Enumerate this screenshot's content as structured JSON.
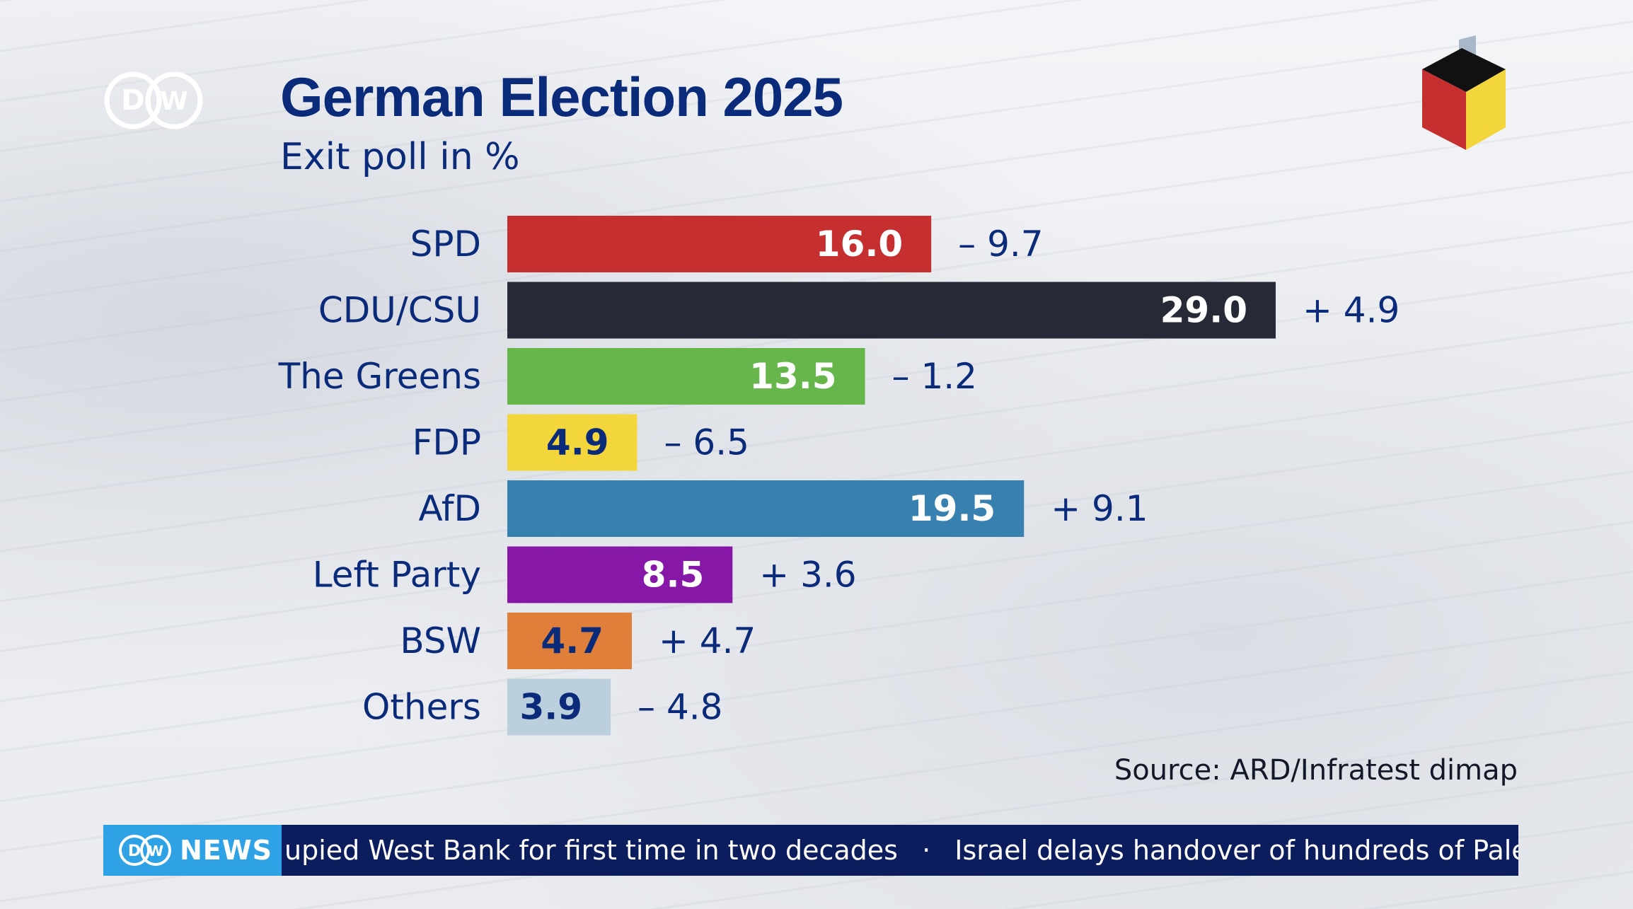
{
  "header": {
    "logo_text": "DW",
    "title": "German Election 2025",
    "subtitle": "Exit poll in %"
  },
  "colors": {
    "title": "#0a2a7a",
    "ticker_bg": "#0b1d5c",
    "ticker_brand_bg": "#2fa2e6"
  },
  "icons": {
    "logo": "dw-logo-icon",
    "ballot_box": "ballot-box-cube-icon"
  },
  "chart_data": {
    "type": "bar",
    "orientation": "horizontal",
    "title": "German Election 2025",
    "subtitle": "Exit poll in %",
    "categories": [
      "SPD",
      "CDU/CSU",
      "The Greens",
      "FDP",
      "AfD",
      "Left Party",
      "BSW",
      "Others"
    ],
    "values": [
      16.0,
      29.0,
      13.5,
      4.9,
      19.5,
      8.5,
      4.7,
      3.9
    ],
    "value_labels": [
      "16.0",
      "29.0",
      "13.5",
      "4.9",
      "19.5",
      "8.5",
      "4.7",
      "3.9"
    ],
    "changes": [
      "– 9.7",
      "+ 4.9",
      "– 1.2",
      "– 6.5",
      "+ 9.1",
      "+ 3.6",
      "+ 4.7",
      "– 4.8"
    ],
    "colors": [
      "#c62f2f",
      "#262a36",
      "#66b64c",
      "#f2d63b",
      "#3780b0",
      "#8717a6",
      "#e07f3a",
      "#bccfdc"
    ],
    "value_label_colors": [
      "#ffffff",
      "#ffffff",
      "#ffffff",
      "#0a2a7a",
      "#ffffff",
      "#ffffff",
      "#0a2a7a",
      "#0a2a7a"
    ],
    "xlim": [
      0,
      29.0
    ],
    "grid": false,
    "legend": "none"
  },
  "source": "Source: ARD/Infratest dimap",
  "ticker": {
    "brand": "NEWS",
    "headlines": [
      "upied West Bank for first time in two decades",
      "Israel delays handover of hundreds of Palestinian c"
    ],
    "separator": "·"
  }
}
